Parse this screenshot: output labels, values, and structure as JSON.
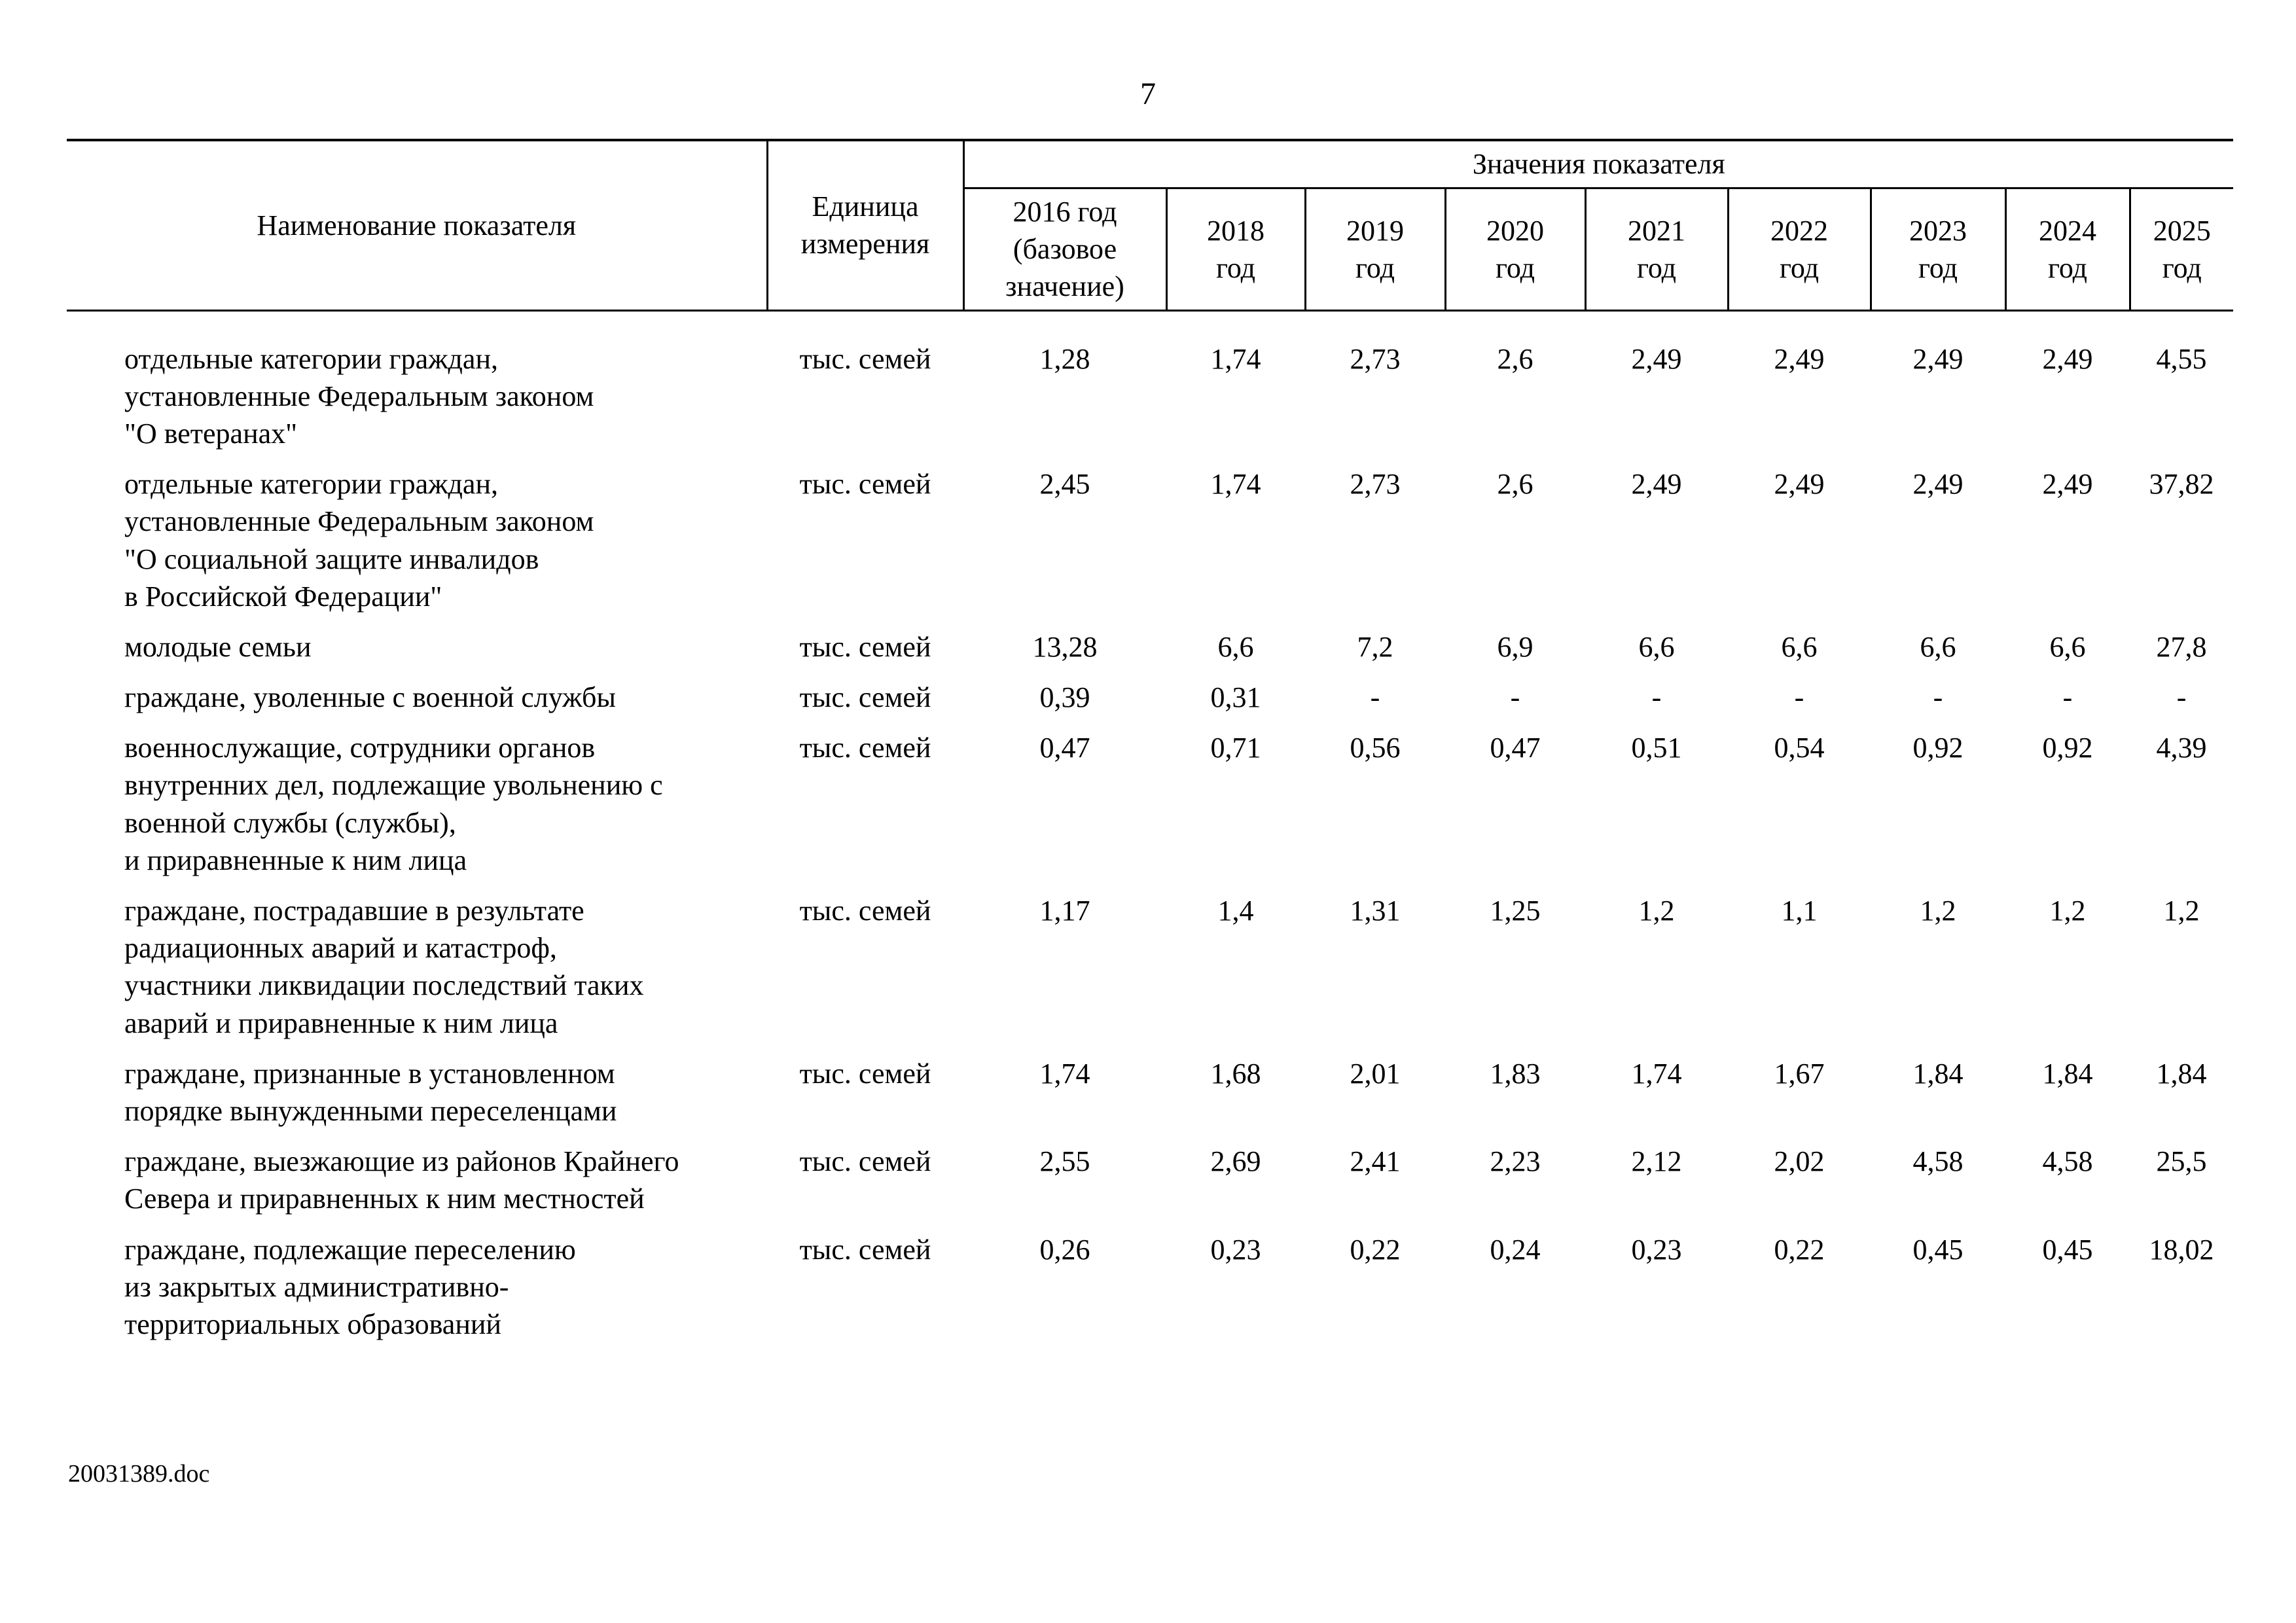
{
  "page": {
    "number": "7",
    "footer": "20031389.doc"
  },
  "table": {
    "header": {
      "indicator": "Наименование показателя",
      "unit": "Единица\nизмерения",
      "values_group": "Значения показателя",
      "year_columns": [
        "2016 год\n(базовое\nзначение)",
        "2018\nгод",
        "2019\nгод",
        "2020\nгод",
        "2021\nгод",
        "2022\nгод",
        "2023\nгод",
        "2024\nгод",
        "2025\nгод"
      ]
    },
    "rows": [
      {
        "name": "отдельные категории граждан,\nустановленные Федеральным законом\n\"О ветеранах\"",
        "unit": "тыс. семей",
        "values": [
          "1,28",
          "1,74",
          "2,73",
          "2,6",
          "2,49",
          "2,49",
          "2,49",
          "2,49",
          "4,55"
        ]
      },
      {
        "name": "отдельные категории граждан,\nустановленные Федеральным законом\n\"О социальной защите инвалидов\nв Российской Федерации\"",
        "unit": "тыс. семей",
        "values": [
          "2,45",
          "1,74",
          "2,73",
          "2,6",
          "2,49",
          "2,49",
          "2,49",
          "2,49",
          "37,82"
        ]
      },
      {
        "name": "молодые семьи",
        "unit": "тыс. семей",
        "values": [
          "13,28",
          "6,6",
          "7,2",
          "6,9",
          "6,6",
          "6,6",
          "6,6",
          "6,6",
          "27,8"
        ]
      },
      {
        "name": "граждане, уволенные с военной службы",
        "unit": "тыс. семей",
        "values": [
          "0,39",
          "0,31",
          "-",
          "-",
          "-",
          "-",
          "-",
          "-",
          "-"
        ]
      },
      {
        "name": "военнослужащие, сотрудники органов\nвнутренних дел, подлежащие увольнению с\nвоенной службы (службы),\nи приравненные к ним лица",
        "unit": "тыс. семей",
        "values": [
          "0,47",
          "0,71",
          "0,56",
          "0,47",
          "0,51",
          "0,54",
          "0,92",
          "0,92",
          "4,39"
        ]
      },
      {
        "name": "граждане, пострадавшие в результате\nрадиационных аварий и катастроф,\nучастники ликвидации последствий таких\nаварий и приравненные к ним лица",
        "unit": "тыс. семей",
        "values": [
          "1,17",
          "1,4",
          "1,31",
          "1,25",
          "1,2",
          "1,1",
          "1,2",
          "1,2",
          "1,2"
        ]
      },
      {
        "name": "граждане, признанные в установленном\nпорядке вынужденными переселенцами",
        "unit": "тыс. семей",
        "values": [
          "1,74",
          "1,68",
          "2,01",
          "1,83",
          "1,74",
          "1,67",
          "1,84",
          "1,84",
          "1,84"
        ]
      },
      {
        "name": "граждане, выезжающие из районов Крайнего\nСевера и приравненных к ним местностей",
        "unit": "тыс. семей",
        "values": [
          "2,55",
          "2,69",
          "2,41",
          "2,23",
          "2,12",
          "2,02",
          "4,58",
          "4,58",
          "25,5"
        ]
      },
      {
        "name": "граждане, подлежащие переселению\nиз закрытых административно-\nтерриториальных образований",
        "unit": "тыс. семей",
        "values": [
          "0,26",
          "0,23",
          "0,22",
          "0,24",
          "0,23",
          "0,22",
          "0,45",
          "0,45",
          "18,02"
        ]
      }
    ]
  }
}
